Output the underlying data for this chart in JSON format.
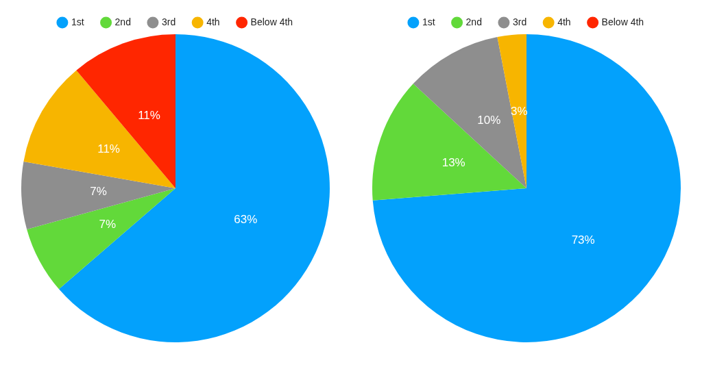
{
  "chart_data": [
    {
      "type": "pie",
      "categories": [
        "1st",
        "2nd",
        "3rd",
        "4th",
        "Below 4th"
      ],
      "values": [
        63,
        7,
        7,
        11,
        11
      ],
      "value_labels": [
        "63%",
        "7%",
        "7%",
        "11%",
        "11%"
      ],
      "colors": [
        "#03a1fc",
        "#62d93a",
        "#8e8e8e",
        "#f7b500",
        "#ff2600"
      ],
      "legend": "top"
    },
    {
      "type": "pie",
      "categories": [
        "1st",
        "2nd",
        "3rd",
        "4th",
        "Below 4th"
      ],
      "values": [
        73,
        13,
        10,
        3,
        0
      ],
      "value_labels": [
        "73%",
        "13%",
        "10%",
        "3%",
        null
      ],
      "colors": [
        "#03a1fc",
        "#62d93a",
        "#8e8e8e",
        "#f7b500",
        "#ff2600"
      ],
      "legend": "top"
    }
  ]
}
